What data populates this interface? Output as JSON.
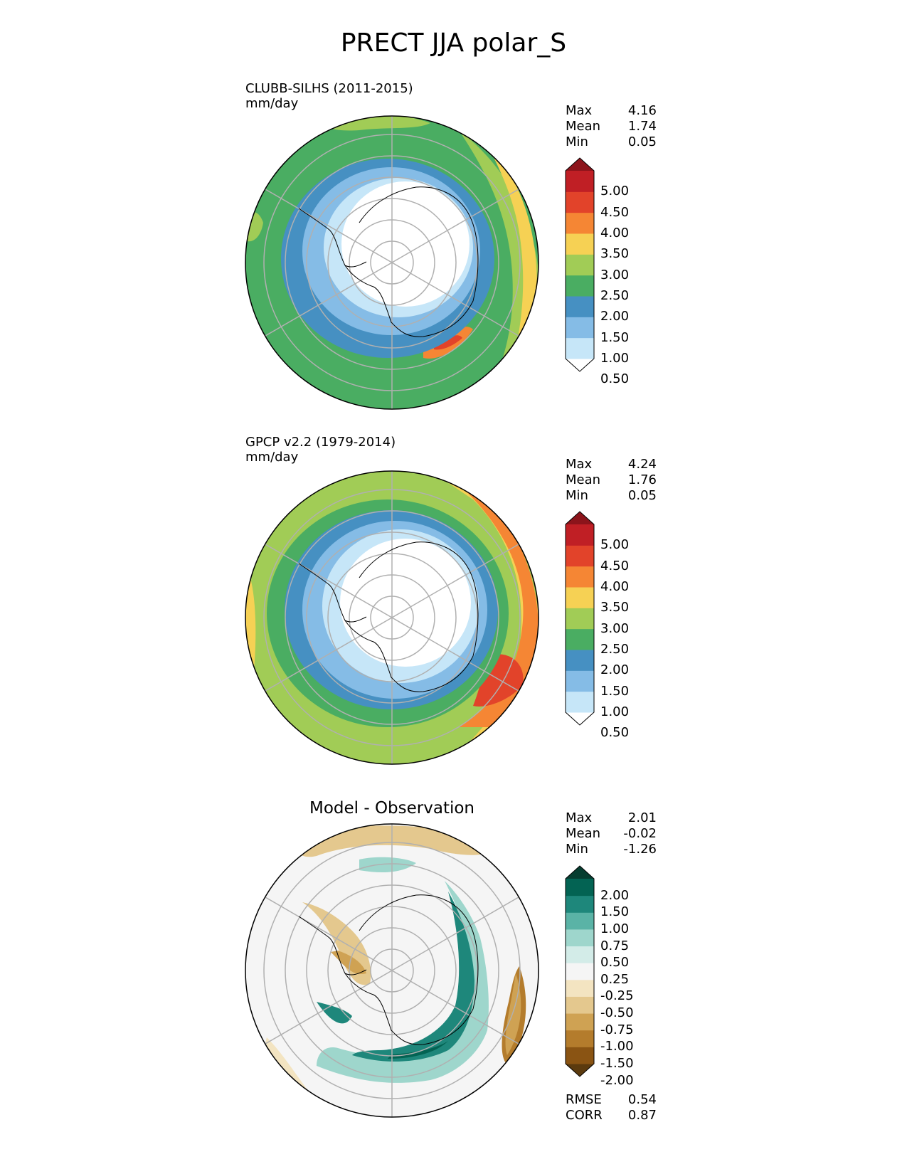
{
  "figure": {
    "title": "PRECT JJA polar_S"
  },
  "panels": [
    {
      "id": "test",
      "label": "CLUBB-SILHS (2011-2015)",
      "units": "mm/day",
      "stats": {
        "max_label": "Max",
        "max": "4.16",
        "mean_label": "Mean",
        "mean": "1.74",
        "min_label": "Min",
        "min": "0.05"
      },
      "colorbar": {
        "ticks": [
          "5.00",
          "4.50",
          "4.00",
          "3.50",
          "3.00",
          "2.50",
          "2.00",
          "1.50",
          "1.00",
          "0.50"
        ],
        "colors": [
          "#ffffff",
          "#c6e6f8",
          "#85bce6",
          "#4690c2",
          "#4aad62",
          "#a1cc56",
          "#f6d154",
          "#f58634",
          "#e2432a",
          "#c01f25",
          "#8c141b"
        ]
      }
    },
    {
      "id": "reference",
      "label": "GPCP v2.2 (1979-2014)",
      "units": "mm/day",
      "stats": {
        "max_label": "Max",
        "max": "4.24",
        "mean_label": "Mean",
        "mean": "1.76",
        "min_label": "Min",
        "min": "0.05"
      },
      "colorbar": {
        "ticks": [
          "5.00",
          "4.50",
          "4.00",
          "3.50",
          "3.00",
          "2.50",
          "2.00",
          "1.50",
          "1.00",
          "0.50"
        ],
        "colors": [
          "#ffffff",
          "#c6e6f8",
          "#85bce6",
          "#4690c2",
          "#4aad62",
          "#a1cc56",
          "#f6d154",
          "#f58634",
          "#e2432a",
          "#c01f25",
          "#8c141b"
        ]
      }
    },
    {
      "id": "difference",
      "title": "Model - Observation",
      "stats": {
        "max_label": "Max",
        "max": "2.01",
        "mean_label": "Mean",
        "mean": "-0.02",
        "min_label": "Min",
        "min": "-1.26"
      },
      "colorbar": {
        "ticks": [
          "2.00",
          "1.50",
          "1.00",
          "0.75",
          "0.50",
          "0.25",
          "-0.25",
          "-0.50",
          "-0.75",
          "-1.00",
          "-1.50",
          "-2.00"
        ],
        "colors": [
          "#5b3a0e",
          "#8a5413",
          "#b47c2c",
          "#cfa253",
          "#e4c88e",
          "#f3e4c1",
          "#f5f5f5",
          "#d3ece8",
          "#9ed6cc",
          "#5ab3a6",
          "#1e877b",
          "#036353",
          "#063d30"
        ]
      },
      "metrics": {
        "rmse_label": "RMSE",
        "rmse": "0.54",
        "corr_label": "CORR",
        "corr": "0.87"
      }
    }
  ]
}
